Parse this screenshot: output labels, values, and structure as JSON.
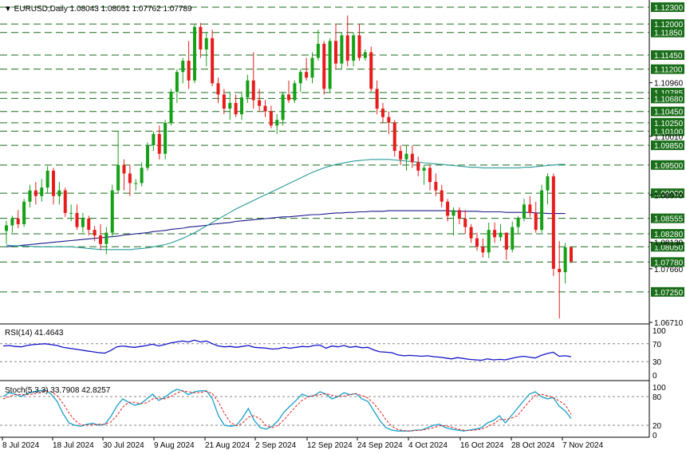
{
  "header": {
    "symbol_line": "▼ EURUSD,Daily  1.08043 1.08051 1.07762 1.07789"
  },
  "colors": {
    "bull": "#16a016",
    "bear": "#e81c1c",
    "level": "#1a6e1a",
    "ma_fast": "#1a1a8a",
    "ma_slow": "#2a9a9a",
    "rsi": "#1414c8",
    "stoch_main": "#1aa0c8",
    "stoch_signal": "#e81c1c",
    "grid_text": "#000000"
  },
  "chart_data": [
    {
      "type": "candlestick",
      "title": "EURUSD,Daily",
      "ohlc_header": [
        "1.08043",
        "1.08051",
        "1.07762",
        "1.07789"
      ],
      "x_tick_labels": [
        "8 Jul 2024",
        "18 Jul 2024",
        "30 Jul 2024",
        "9 Aug 2024",
        "21 Aug 2024",
        "2 Sep 2024",
        "12 Sep 2024",
        "24 Sep 2024",
        "4 Oct 2024",
        "16 Oct 2024",
        "28 Oct 2024",
        "7 Nov 2024"
      ],
      "y_range": [
        1.0671,
        1.1237
      ],
      "price_levels": [
        "1.12300",
        "1.12000",
        "1.11850",
        "1.11450",
        "1.11200",
        "1.10785",
        "1.10680",
        "1.10450",
        "1.10250",
        "1.10100",
        "1.09850",
        "1.09500",
        "1.09000",
        "1.08555",
        "1.08280",
        "1.08050",
        "1.07780",
        "1.07250"
      ],
      "axis_ticks": [
        "1.10960",
        "1.10010",
        "1.08970",
        "1.08130",
        "1.07660",
        "1.06710"
      ],
      "candles": [
        [
          1.0833,
          1.0851,
          1.081,
          1.0843
        ],
        [
          1.0843,
          1.086,
          1.083,
          1.0855
        ],
        [
          1.0855,
          1.087,
          1.0838,
          1.0845
        ],
        [
          1.0845,
          1.089,
          1.084,
          1.0885
        ],
        [
          1.0885,
          1.0915,
          1.0875,
          1.0905
        ],
        [
          1.0905,
          1.092,
          1.088,
          1.0895
        ],
        [
          1.0895,
          1.0925,
          1.0885,
          1.091
        ],
        [
          1.091,
          1.0948,
          1.09,
          1.094
        ],
        [
          1.094,
          1.0945,
          1.088,
          1.0895
        ],
        [
          1.0895,
          1.092,
          1.088,
          1.0905
        ],
        [
          1.0905,
          1.091,
          1.0858,
          1.0865
        ],
        [
          1.0865,
          1.088,
          1.085,
          1.0865
        ],
        [
          1.0865,
          1.088,
          1.0835,
          1.084
        ],
        [
          1.084,
          1.0865,
          1.083,
          1.0855
        ],
        [
          1.0855,
          1.086,
          1.0825,
          1.0835
        ],
        [
          1.0835,
          1.0842,
          1.0815,
          1.0825
        ],
        [
          1.0825,
          1.0845,
          1.08,
          1.081
        ],
        [
          1.081,
          1.084,
          1.0792,
          1.083
        ],
        [
          1.083,
          1.0915,
          1.0822,
          1.0905
        ],
        [
          1.0905,
          1.101,
          1.09,
          1.095
        ],
        [
          1.095,
          1.096,
          1.0905,
          1.0935
        ],
        [
          1.0935,
          1.095,
          1.0895,
          1.0918
        ],
        [
          1.0918,
          1.0925,
          1.0905,
          1.0918
        ],
        [
          1.0918,
          1.0955,
          1.0912,
          1.0945
        ],
        [
          1.0945,
          1.099,
          1.094,
          1.0985
        ],
        [
          1.0985,
          1.101,
          1.0975,
          1.1005
        ],
        [
          1.1005,
          1.102,
          1.096,
          1.097
        ],
        [
          1.097,
          1.103,
          1.096,
          1.1025
        ],
        [
          1.1025,
          1.1085,
          1.102,
          1.108
        ],
        [
          1.108,
          1.112,
          1.106,
          1.1115
        ],
        [
          1.1115,
          1.114,
          1.1095,
          1.1135
        ],
        [
          1.1135,
          1.117,
          1.1085,
          1.11
        ],
        [
          1.11,
          1.12,
          1.1095,
          1.1195
        ],
        [
          1.1195,
          1.1202,
          1.114,
          1.1155
        ],
        [
          1.1155,
          1.1185,
          1.1125,
          1.1175
        ],
        [
          1.1175,
          1.119,
          1.109,
          1.1095
        ],
        [
          1.1095,
          1.1105,
          1.106,
          1.1075
        ],
        [
          1.1075,
          1.1085,
          1.104,
          1.105
        ],
        [
          1.105,
          1.108,
          1.103,
          1.106
        ],
        [
          1.106,
          1.1075,
          1.1035,
          1.104
        ],
        [
          1.104,
          1.108,
          1.103,
          1.107
        ],
        [
          1.107,
          1.111,
          1.106,
          1.11
        ],
        [
          1.11,
          1.115,
          1.105,
          1.1065
        ],
        [
          1.1065,
          1.1085,
          1.1045,
          1.1055
        ],
        [
          1.1055,
          1.1065,
          1.1035,
          1.1045
        ],
        [
          1.1045,
          1.1055,
          1.1015,
          1.102
        ],
        [
          1.102,
          1.104,
          1.1005,
          1.103
        ],
        [
          1.103,
          1.108,
          1.102,
          1.1075
        ],
        [
          1.1075,
          1.11,
          1.106,
          1.1065
        ],
        [
          1.1065,
          1.11,
          1.106,
          1.1095
        ],
        [
          1.1095,
          1.112,
          1.108,
          1.1115
        ],
        [
          1.1115,
          1.114,
          1.11,
          1.1105
        ],
        [
          1.1105,
          1.115,
          1.1095,
          1.114
        ],
        [
          1.114,
          1.119,
          1.1135,
          1.1165
        ],
        [
          1.1165,
          1.117,
          1.1075,
          1.1085
        ],
        [
          1.1085,
          1.1175,
          1.1078,
          1.117
        ],
        [
          1.117,
          1.12,
          1.112,
          1.113
        ],
        [
          1.113,
          1.1185,
          1.112,
          1.118
        ],
        [
          1.118,
          1.1215,
          1.1125,
          1.1135
        ],
        [
          1.1135,
          1.1185,
          1.1125,
          1.118
        ],
        [
          1.118,
          1.12,
          1.1135,
          1.114
        ],
        [
          1.114,
          1.1155,
          1.1135,
          1.115
        ],
        [
          1.115,
          1.116,
          1.108,
          1.1085
        ],
        [
          1.1085,
          1.11,
          1.104,
          1.105
        ],
        [
          1.105,
          1.106,
          1.1025,
          1.1035
        ],
        [
          1.1035,
          1.1045,
          1.1005,
          1.1025
        ],
        [
          1.1025,
          1.103,
          1.0965,
          1.0975
        ],
        [
          1.0975,
          1.0985,
          1.095,
          1.096
        ],
        [
          1.096,
          1.0985,
          1.094,
          1.097
        ],
        [
          1.097,
          1.0985,
          1.0945,
          1.0955
        ],
        [
          1.0955,
          1.0965,
          1.093,
          1.094
        ],
        [
          1.094,
          1.095,
          1.0915,
          1.0945
        ],
        [
          1.0945,
          1.095,
          1.0905,
          1.092
        ],
        [
          1.092,
          1.0935,
          1.0895,
          1.0905
        ],
        [
          1.0905,
          1.0915,
          1.0875,
          1.0885
        ],
        [
          1.0885,
          1.089,
          1.085,
          1.086
        ],
        [
          1.086,
          1.0875,
          1.0825,
          1.087
        ],
        [
          1.087,
          1.0875,
          1.0845,
          1.0855
        ],
        [
          1.0855,
          1.087,
          1.0828,
          1.084
        ],
        [
          1.084,
          1.0845,
          1.0812,
          1.082
        ],
        [
          1.082,
          1.083,
          1.0798,
          1.0805
        ],
        [
          1.0805,
          1.082,
          1.0786,
          1.0795
        ],
        [
          1.0795,
          1.0848,
          1.0785,
          1.0835
        ],
        [
          1.0835,
          1.0848,
          1.0812,
          1.0822
        ],
        [
          1.0822,
          1.0845,
          1.0815,
          1.083
        ],
        [
          1.083,
          1.083,
          1.0782,
          1.08
        ],
        [
          1.08,
          1.085,
          1.0795,
          1.084
        ],
        [
          1.084,
          1.086,
          1.0828,
          1.0855
        ],
        [
          1.0855,
          1.089,
          1.085,
          1.088
        ],
        [
          1.088,
          1.0895,
          1.0858,
          1.0865
        ],
        [
          1.0865,
          1.0885,
          1.083,
          1.0835
        ],
        [
          1.0835,
          1.0915,
          1.083,
          1.0905
        ],
        [
          1.0905,
          1.0935,
          1.088,
          1.093
        ],
        [
          1.093,
          1.0935,
          1.0753,
          1.0766
        ],
        [
          1.0766,
          1.0815,
          1.0678,
          1.076
        ],
        [
          1.076,
          1.0812,
          1.074,
          1.0804
        ],
        [
          1.0804,
          1.0805,
          1.0776,
          1.0779
        ]
      ],
      "series": [
        {
          "name": "",
          "values": [
            1.0805,
            1.0806,
            1.0807,
            1.0808,
            1.0809,
            1.081,
            1.0811,
            1.0812,
            1.0813,
            1.0814,
            1.0815,
            1.0816,
            1.0817,
            1.0818,
            1.0819,
            1.082,
            1.0821,
            1.0822,
            1.0823,
            1.0824,
            1.0826,
            1.0827,
            1.0828,
            1.0829,
            1.083,
            1.0832,
            1.0833,
            1.0834,
            1.0836,
            1.0837,
            1.0838,
            1.084,
            1.0841,
            1.0842,
            1.0843,
            1.0845,
            1.0846,
            1.0847,
            1.0848,
            1.085,
            1.0851,
            1.0852,
            1.0853,
            1.0854,
            1.0855,
            1.0856,
            1.0857,
            1.0858,
            1.0858,
            1.0859,
            1.086,
            1.0861,
            1.0862,
            1.0862,
            1.0863,
            1.0864,
            1.0865,
            1.0865,
            1.0866,
            1.0866,
            1.0867,
            1.0867,
            1.0868,
            1.0868,
            1.0868,
            1.0869,
            1.0869,
            1.0869,
            1.0869,
            1.0869,
            1.0869,
            1.0869,
            1.0869,
            1.0869,
            1.0869,
            1.0869,
            1.0868,
            1.0868,
            1.0868,
            1.0868,
            1.0868,
            1.0867,
            1.0867,
            1.0867,
            1.0867,
            1.0866,
            1.0866,
            1.0866,
            1.0866,
            1.0866,
            1.0865,
            1.0865,
            1.0864,
            1.0864,
            1.0864,
            1.0864
          ]
        },
        {
          "name": "",
          "values": [
            1.0808,
            1.0807,
            1.0807,
            1.0806,
            1.0806,
            1.0805,
            1.0805,
            1.0805,
            1.0805,
            1.0805,
            1.0805,
            1.0805,
            1.0804,
            1.0803,
            1.0802,
            1.0801,
            1.08,
            1.08,
            1.08,
            1.08,
            1.08,
            1.08,
            1.0801,
            1.0802,
            1.0803,
            1.0805,
            1.0807,
            1.0809,
            1.0812,
            1.0816,
            1.082,
            1.0825,
            1.083,
            1.0836,
            1.0842,
            1.0848,
            1.0854,
            1.086,
            1.0866,
            1.0872,
            1.0877,
            1.0882,
            1.0887,
            1.0892,
            1.0897,
            1.0902,
            1.0907,
            1.0912,
            1.0917,
            1.0922,
            1.0927,
            1.0932,
            1.0937,
            1.0941,
            1.0945,
            1.0948,
            1.0951,
            1.0953,
            1.0955,
            1.0957,
            1.0958,
            1.0959,
            1.096,
            1.096,
            1.096,
            1.096,
            1.0959,
            1.0958,
            1.0957,
            1.0956,
            1.0955,
            1.0954,
            1.0953,
            1.0952,
            1.0951,
            1.095,
            1.0949,
            1.0948,
            1.0947,
            1.0946,
            1.0946,
            1.0945,
            1.0945,
            1.0945,
            1.0945,
            1.0945,
            1.0945,
            1.0945,
            1.0946,
            1.0946,
            1.0947,
            1.0948,
            1.0949,
            1.095,
            1.0951,
            1.0951
          ]
        }
      ]
    },
    {
      "type": "line",
      "title": "RSI(14) 41.4643",
      "y_range": [
        0,
        100
      ],
      "y_tick_labels": [
        "100",
        "70",
        "30",
        "0"
      ],
      "levels": [
        70,
        30
      ],
      "series": [
        {
          "name": "RSI(14)",
          "values": [
            65,
            66,
            64,
            63,
            66,
            68,
            69,
            70,
            68,
            66,
            62,
            60,
            58,
            56,
            54,
            52,
            50,
            49,
            55,
            63,
            65,
            63,
            62,
            64,
            66,
            69,
            65,
            68,
            72,
            74,
            76,
            74,
            78,
            74,
            76,
            70,
            65,
            63,
            64,
            62,
            64,
            66,
            62,
            61,
            60,
            58,
            59,
            62,
            60,
            62,
            64,
            63,
            66,
            67,
            60,
            65,
            63,
            66,
            62,
            64,
            61,
            62,
            56,
            52,
            51,
            50,
            45,
            43,
            44,
            43,
            42,
            43,
            41,
            40,
            38,
            36,
            39,
            37,
            35,
            34,
            33,
            36,
            34,
            35,
            34,
            37,
            40,
            42,
            40,
            38,
            44,
            48,
            51,
            42,
            43,
            41
          ]
        }
      ]
    },
    {
      "type": "line",
      "title": "Stoch(5,3,3) 33.7908 42.8257",
      "y_range": [
        0,
        100
      ],
      "y_tick_labels": [
        "100",
        "80",
        "20",
        "0"
      ],
      "levels": [
        80,
        20
      ],
      "series": [
        {
          "name": "%K",
          "values": [
            80,
            88,
            85,
            80,
            86,
            90,
            92,
            94,
            85,
            70,
            45,
            25,
            20,
            18,
            22,
            24,
            20,
            22,
            38,
            60,
            75,
            68,
            62,
            65,
            75,
            85,
            72,
            78,
            88,
            95,
            92,
            84,
            90,
            92,
            92,
            75,
            40,
            20,
            18,
            20,
            35,
            55,
            30,
            15,
            12,
            18,
            30,
            48,
            60,
            72,
            85,
            80,
            82,
            90,
            85,
            75,
            80,
            88,
            84,
            86,
            75,
            70,
            50,
            30,
            15,
            10,
            8,
            8,
            8,
            10,
            10,
            15,
            20,
            22,
            15,
            12,
            10,
            8,
            10,
            12,
            15,
            25,
            30,
            40,
            25,
            40,
            55,
            70,
            85,
            90,
            80,
            75,
            78,
            60,
            50,
            34
          ]
        },
        {
          "name": "%D",
          "values": [
            75,
            80,
            84,
            84,
            84,
            85,
            88,
            92,
            90,
            82,
            66,
            46,
            30,
            21,
            20,
            21,
            22,
            22,
            27,
            40,
            58,
            68,
            68,
            65,
            67,
            75,
            77,
            75,
            80,
            87,
            92,
            90,
            88,
            88,
            91,
            86,
            69,
            45,
            26,
            19,
            24,
            37,
            40,
            33,
            19,
            15,
            20,
            32,
            46,
            60,
            72,
            79,
            82,
            84,
            86,
            83,
            80,
            81,
            84,
            86,
            82,
            77,
            65,
            50,
            32,
            18,
            11,
            9,
            8,
            9,
            10,
            12,
            15,
            19,
            19,
            16,
            12,
            10,
            9,
            10,
            12,
            17,
            23,
            32,
            32,
            35,
            40,
            55,
            70,
            82,
            85,
            82,
            78,
            71,
            63,
            43
          ]
        }
      ]
    }
  ]
}
